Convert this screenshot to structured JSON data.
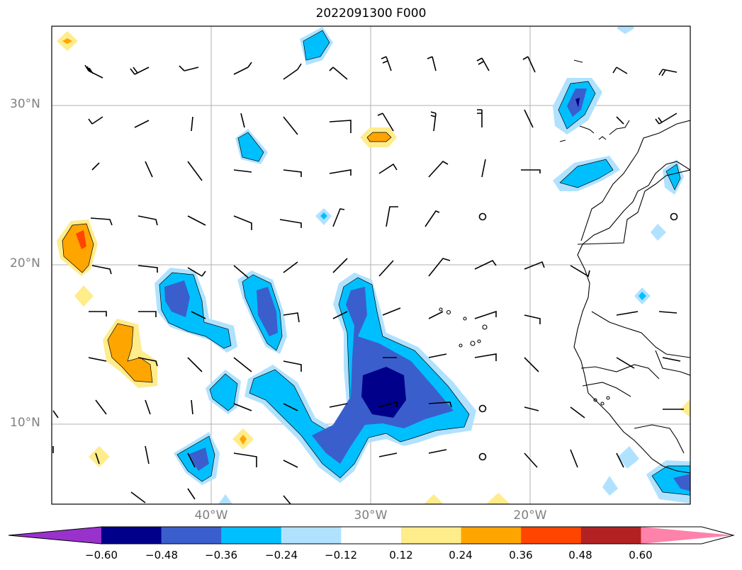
{
  "title": "2022091300 F000",
  "map": {
    "lat_labels": [
      "30°N",
      "20°N",
      "10°N"
    ],
    "lon_labels": [
      "40°W",
      "30°W",
      "20°W"
    ]
  },
  "colorbar": {
    "colors": [
      "#9932cc",
      "#00008b",
      "#3a5fcd",
      "#00bfff",
      "#b0e2ff",
      "#ffffff",
      "#ffec8b",
      "#ffa500",
      "#ff4500",
      "#b22222",
      "#ff82ab"
    ],
    "tick_labels": [
      "−0.60",
      "−0.48",
      "−0.36",
      "−0.24",
      "−0.12",
      "0.12",
      "0.24",
      "0.36",
      "0.48",
      "0.60"
    ]
  }
}
